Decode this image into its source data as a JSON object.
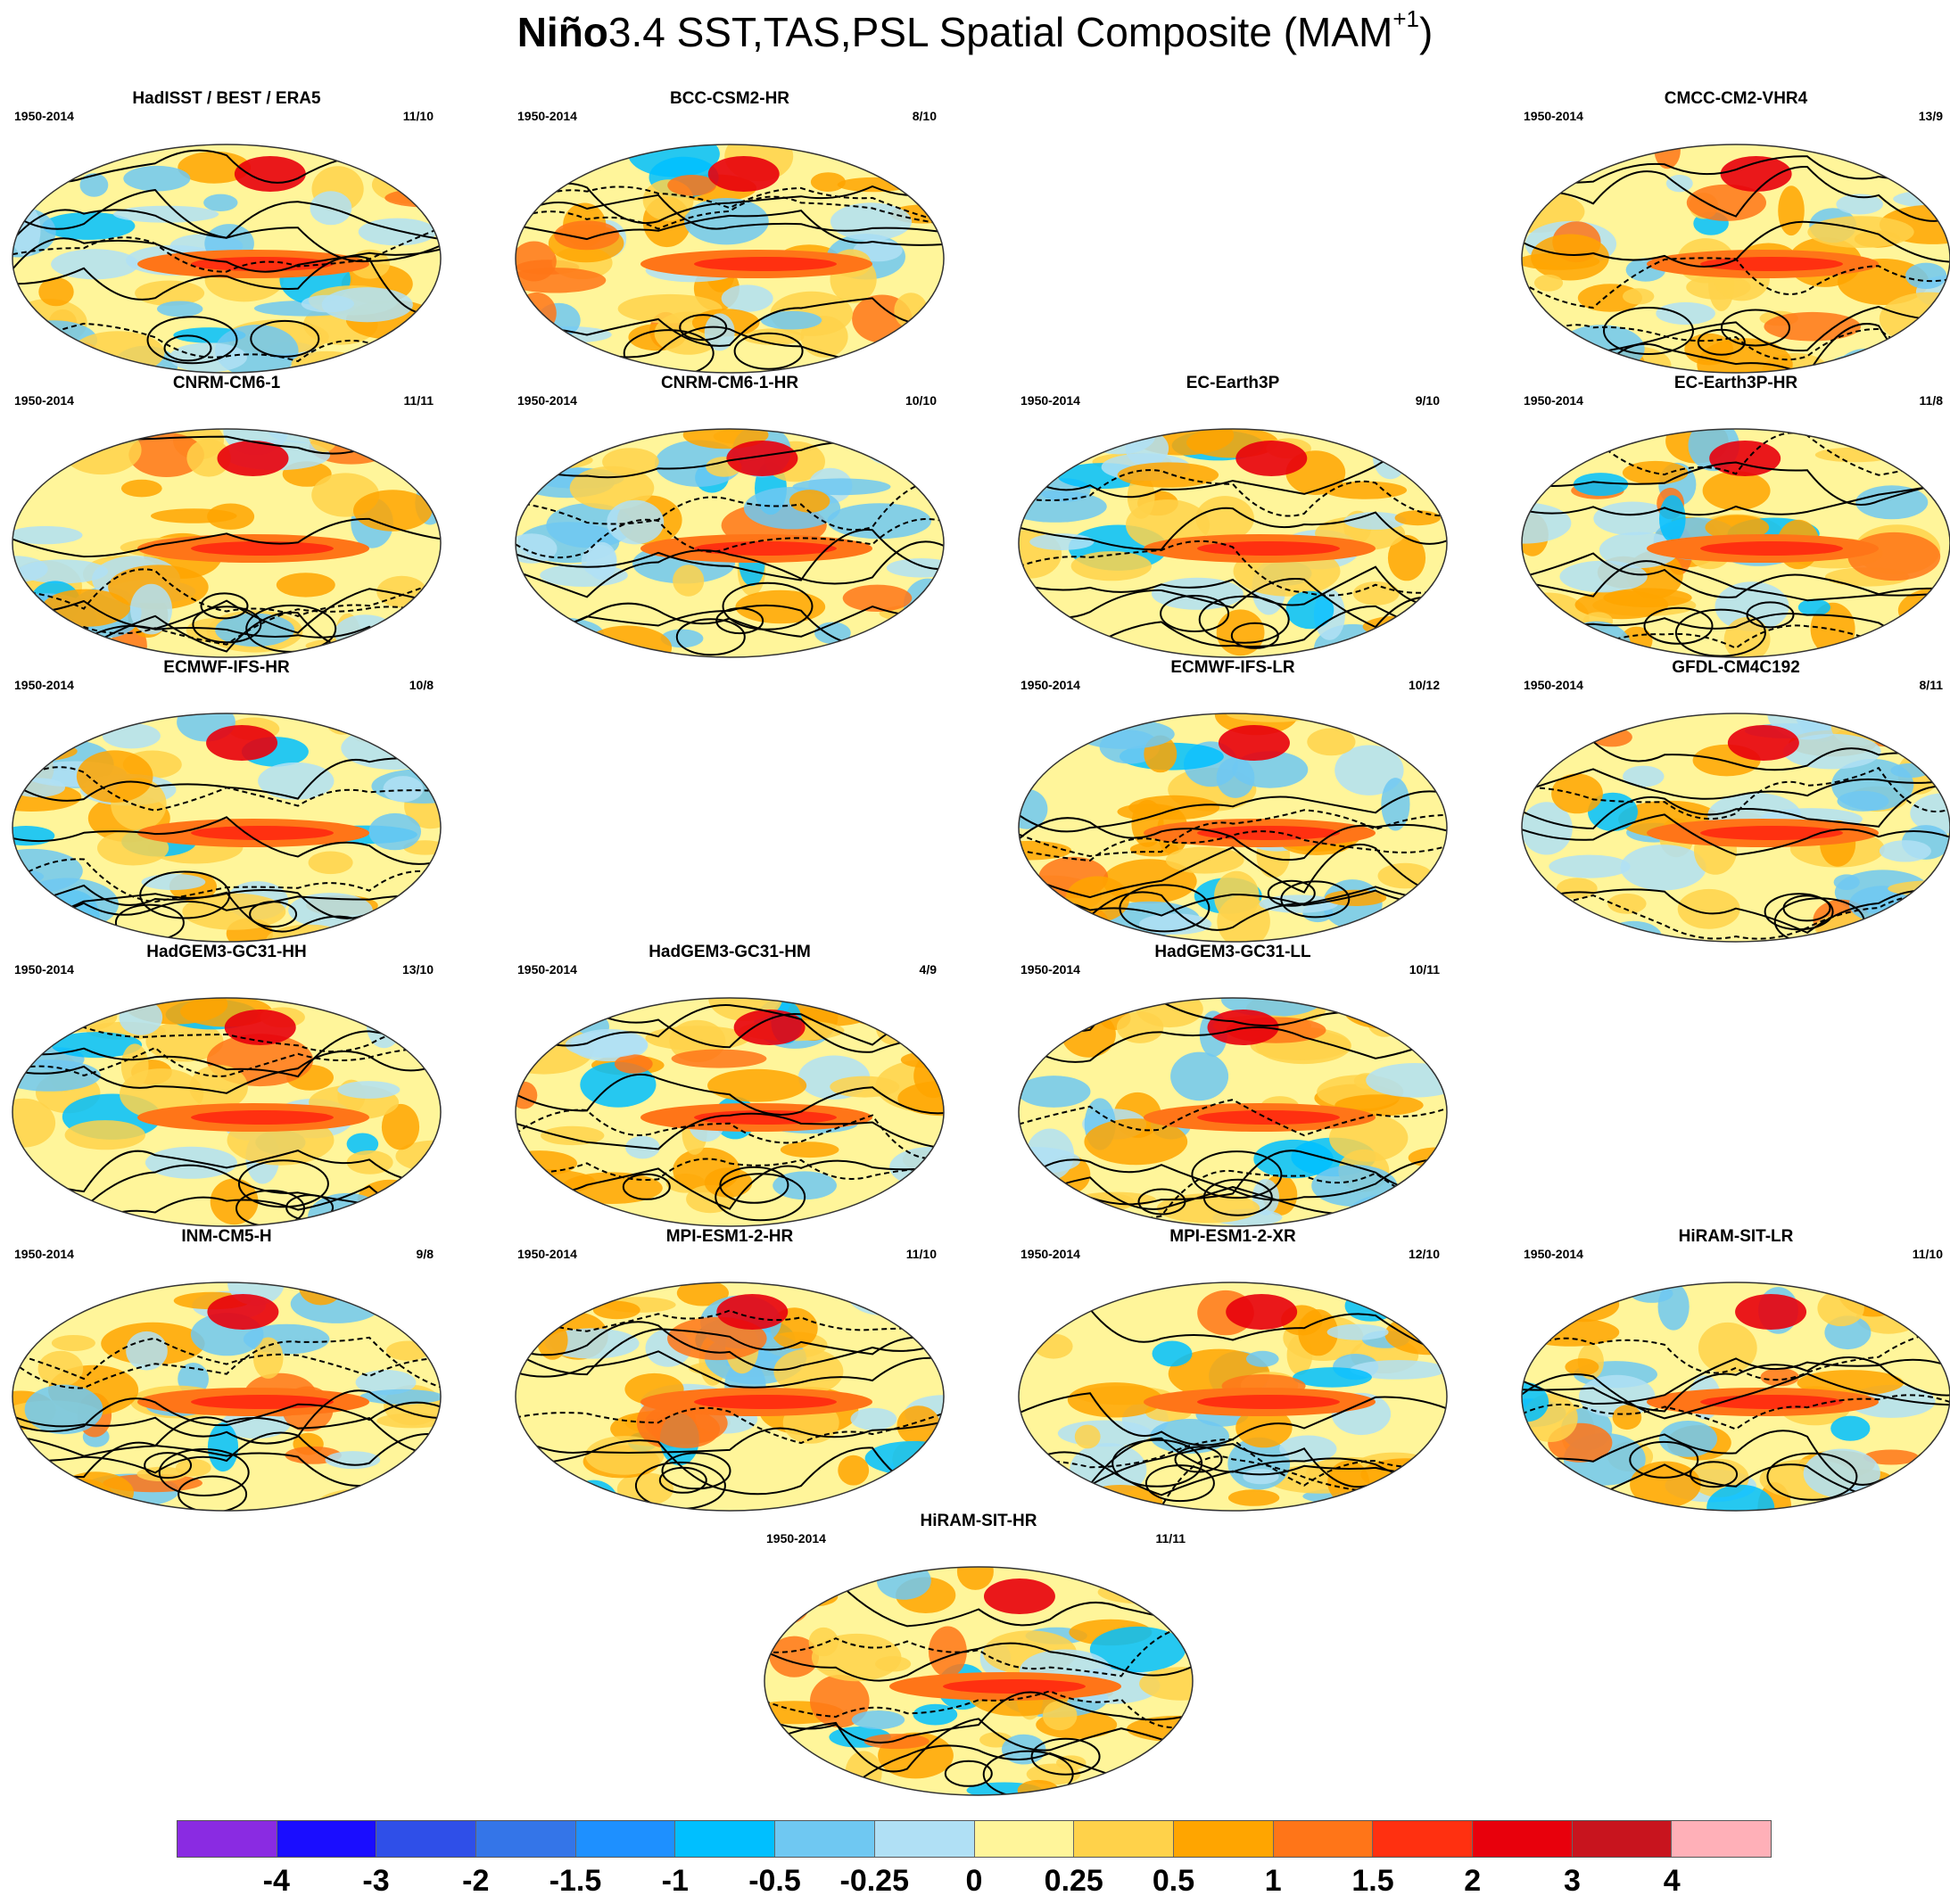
{
  "title": {
    "bold_part": "Niño",
    "rest": "3.4 SST,TAS,PSL Spatial Composite (MAM",
    "superscript": "+1",
    "close": ")"
  },
  "period_label": "1950-2014",
  "panels": [
    {
      "name": "HadISST / BEST / ERA5",
      "count": "11/10",
      "row": 0,
      "col": 0
    },
    {
      "name": "BCC-CSM2-HR",
      "count": "8/10",
      "row": 0,
      "col": 1
    },
    {
      "name": "CMCC-CM2-VHR4",
      "count": "13/9",
      "row": 0,
      "col": 3
    },
    {
      "name": "CNRM-CM6-1",
      "count": "11/11",
      "row": 1,
      "col": 0
    },
    {
      "name": "CNRM-CM6-1-HR",
      "count": "10/10",
      "row": 1,
      "col": 1
    },
    {
      "name": "EC-Earth3P",
      "count": "9/10",
      "row": 1,
      "col": 2
    },
    {
      "name": "EC-Earth3P-HR",
      "count": "11/8",
      "row": 1,
      "col": 3
    },
    {
      "name": "ECMWF-IFS-HR",
      "count": "10/8",
      "row": 2,
      "col": 0
    },
    {
      "name": "ECMWF-IFS-LR",
      "count": "10/12",
      "row": 2,
      "col": 2
    },
    {
      "name": "GFDL-CM4C192",
      "count": "8/11",
      "row": 2,
      "col": 3
    },
    {
      "name": "HadGEM3-GC31-HH",
      "count": "13/10",
      "row": 3,
      "col": 0
    },
    {
      "name": "HadGEM3-GC31-HM",
      "count": "4/9",
      "row": 3,
      "col": 1
    },
    {
      "name": "HadGEM3-GC31-LL",
      "count": "10/11",
      "row": 3,
      "col": 2
    },
    {
      "name": "INM-CM5-H",
      "count": "9/8",
      "row": 4,
      "col": 0
    },
    {
      "name": "MPI-ESM1-2-HR",
      "count": "11/10",
      "row": 4,
      "col": 1
    },
    {
      "name": "MPI-ESM1-2-XR",
      "count": "12/10",
      "row": 4,
      "col": 2
    },
    {
      "name": "HiRAM-SIT-LR",
      "count": "11/10",
      "row": 4,
      "col": 3
    },
    {
      "name": "HiRAM-SIT-HR",
      "count": "11/11",
      "row": 5,
      "col": 1.5
    }
  ],
  "colorbar": {
    "colors": [
      "#8a2be2",
      "#1a0dff",
      "#2f4fe8",
      "#3475e8",
      "#1e90ff",
      "#00bfff",
      "#6fc8f2",
      "#b0e0f5",
      "#fff59a",
      "#ffd24a",
      "#ffa500",
      "#ff7518",
      "#ff3010",
      "#e8000c",
      "#c8141e",
      "#ffb0b8"
    ],
    "labels": [
      "-4",
      "-3",
      "-2",
      "-1.5",
      "-1",
      "-0.5",
      "-0.25",
      "0",
      "0.25",
      "0.5",
      "1",
      "1.5",
      "2",
      "3",
      "4"
    ]
  }
}
